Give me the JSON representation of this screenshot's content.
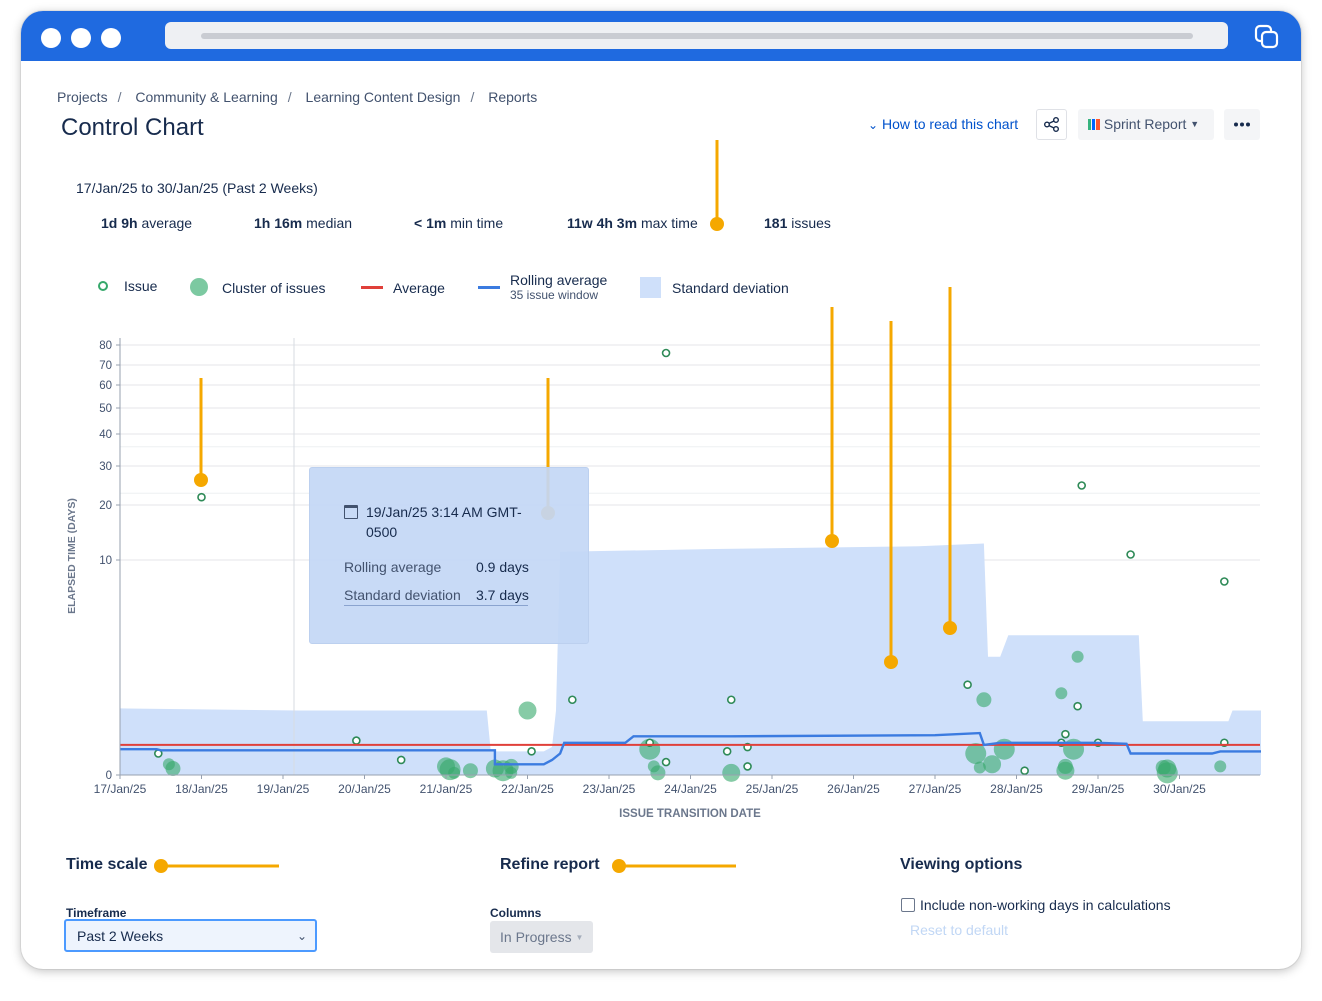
{
  "breadcrumb": [
    "Projects",
    "Community & Learning",
    "Learning Content Design",
    "Reports"
  ],
  "page_title": "Control Chart",
  "header": {
    "how_to_read": "How to read this chart",
    "sprint_report": "Sprint Report",
    "share_icon": "share-icon",
    "more_icon": "more-icon"
  },
  "summary": {
    "range": "17/Jan/25 to 30/Jan/25 (Past 2 Weeks)",
    "stats": [
      {
        "value": "1d 9h",
        "label": "average"
      },
      {
        "value": "1h 16m",
        "label": "median"
      },
      {
        "value": "< 1m",
        "label": "min time"
      },
      {
        "value": "11w 4h 3m",
        "label": "max time"
      },
      {
        "value": "181",
        "label": "issues"
      }
    ]
  },
  "legend": {
    "issue": "Issue",
    "cluster": "Cluster of issues",
    "average": "Average",
    "rolling": "Rolling average",
    "rolling_sub": "35 issue window",
    "stddev": "Standard deviation"
  },
  "colors": {
    "brand": "#1f6ae0",
    "issue": "#36a86b",
    "average": "#e0403a",
    "rolling": "#3b7be0",
    "stddev": "#cfe0fa",
    "annotation": "#f5a800",
    "link": "#0052cc"
  },
  "tooltip": {
    "date": "19/Jan/25 3:14 AM GMT-0500",
    "rolling_label": "Rolling average",
    "rolling_value": "0.9 days",
    "std_label": "Standard deviation",
    "std_value": "3.7 days"
  },
  "chart_data": {
    "type": "scatter",
    "ylabel": "ELAPSED TIME (DAYS)",
    "xlabel": "ISSUE TRANSITION DATE",
    "y_ticks": [
      0,
      10,
      20,
      30,
      40,
      50,
      60,
      70,
      80
    ],
    "x_ticks": [
      "17/Jan/25",
      "18/Jan/25",
      "19/Jan/25",
      "20/Jan/25",
      "21/Jan/25",
      "22/Jan/25",
      "23/Jan/25",
      "24/Jan/25",
      "25/Jan/25",
      "26/Jan/25",
      "27/Jan/25",
      "28/Jan/25",
      "29/Jan/25",
      "30/Jan/25"
    ],
    "scale": "non-linear (compressed toward 0)",
    "grid": true,
    "average_days": 1.4,
    "issues": [
      [
        17.47,
        1.0
      ],
      [
        18.0,
        22
      ],
      [
        19.9,
        1.6
      ],
      [
        20.45,
        0.7
      ],
      [
        22.05,
        1.1
      ],
      [
        22.55,
        3.5
      ],
      [
        23.5,
        1.5
      ],
      [
        23.7,
        76
      ],
      [
        23.7,
        0.6
      ],
      [
        24.45,
        1.1
      ],
      [
        24.5,
        3.5
      ],
      [
        24.7,
        1.3
      ],
      [
        24.7,
        0.4
      ],
      [
        27.4,
        4.2
      ],
      [
        28.1,
        0.2
      ],
      [
        28.55,
        1.5
      ],
      [
        28.6,
        1.9
      ],
      [
        28.75,
        3.2
      ],
      [
        28.8,
        25
      ],
      [
        29.0,
        1.5
      ],
      [
        29.4,
        11
      ],
      [
        30.55,
        1.5
      ],
      [
        30.55,
        9
      ]
    ],
    "clusters": [
      [
        17.6,
        0.5
      ],
      [
        17.65,
        0.3
      ],
      [
        21.0,
        0.4
      ],
      [
        21.05,
        0.25
      ],
      [
        21.1,
        0.1
      ],
      [
        21.3,
        0.2
      ],
      [
        21.6,
        0.3
      ],
      [
        21.7,
        0.2
      ],
      [
        21.8,
        0.1
      ],
      [
        21.8,
        0.4
      ],
      [
        22.0,
        3.0
      ],
      [
        23.5,
        1.2
      ],
      [
        23.55,
        0.4
      ],
      [
        23.6,
        0.1
      ],
      [
        24.5,
        0.1
      ],
      [
        27.5,
        1.0
      ],
      [
        27.55,
        0.35
      ],
      [
        27.6,
        3.5
      ],
      [
        27.7,
        0.5
      ],
      [
        27.85,
        1.2
      ],
      [
        28.55,
        3.8
      ],
      [
        28.6,
        0.4
      ],
      [
        28.6,
        0.2
      ],
      [
        28.7,
        1.2
      ],
      [
        28.75,
        5.5
      ],
      [
        29.8,
        0.35
      ],
      [
        29.85,
        0.3
      ],
      [
        29.85,
        0.1
      ],
      [
        30.5,
        0.4
      ]
    ],
    "rolling_average": [
      [
        17.0,
        1.2
      ],
      [
        17.45,
        1.2
      ],
      [
        17.5,
        1.15
      ],
      [
        21.6,
        1.15
      ],
      [
        21.6,
        0.5
      ],
      [
        22.2,
        0.5
      ],
      [
        22.3,
        0.7
      ],
      [
        22.4,
        1.0
      ],
      [
        22.45,
        1.5
      ],
      [
        23.2,
        1.5
      ],
      [
        23.3,
        1.8
      ],
      [
        24.5,
        1.8
      ],
      [
        27.0,
        1.85
      ],
      [
        27.55,
        1.95
      ],
      [
        27.6,
        1.4
      ],
      [
        27.8,
        1.5
      ],
      [
        29.0,
        1.5
      ],
      [
        29.35,
        1.45
      ],
      [
        29.4,
        1.0
      ],
      [
        30.4,
        1.0
      ],
      [
        30.5,
        1.1
      ],
      [
        31.0,
        1.1
      ]
    ],
    "std_deviation_upper": [
      [
        17.0,
        3.1
      ],
      [
        19.2,
        3.0
      ],
      [
        21.5,
        3.0
      ],
      [
        21.55,
        1.1
      ],
      [
        22.2,
        1.1
      ],
      [
        22.3,
        1.3
      ],
      [
        22.35,
        3.0
      ],
      [
        22.4,
        11.5
      ],
      [
        24.3,
        12.0
      ],
      [
        26.8,
        12.5
      ],
      [
        27.6,
        13.0
      ],
      [
        27.65,
        5.5
      ],
      [
        27.8,
        5.5
      ],
      [
        27.9,
        6.5
      ],
      [
        29.5,
        6.5
      ],
      [
        29.55,
        2.5
      ],
      [
        30.6,
        2.5
      ],
      [
        30.65,
        3.0
      ],
      [
        31.0,
        3.0
      ]
    ]
  },
  "sections": {
    "time_scale": "Time scale",
    "refine": "Refine report",
    "viewing": "Viewing options"
  },
  "controls": {
    "timeframe_label": "Timeframe",
    "timeframe_value": "Past 2 Weeks",
    "columns_label": "Columns",
    "columns_value": "In Progress",
    "nonworking_label": "Include non-working days in calculations",
    "reset": "Reset to default"
  }
}
